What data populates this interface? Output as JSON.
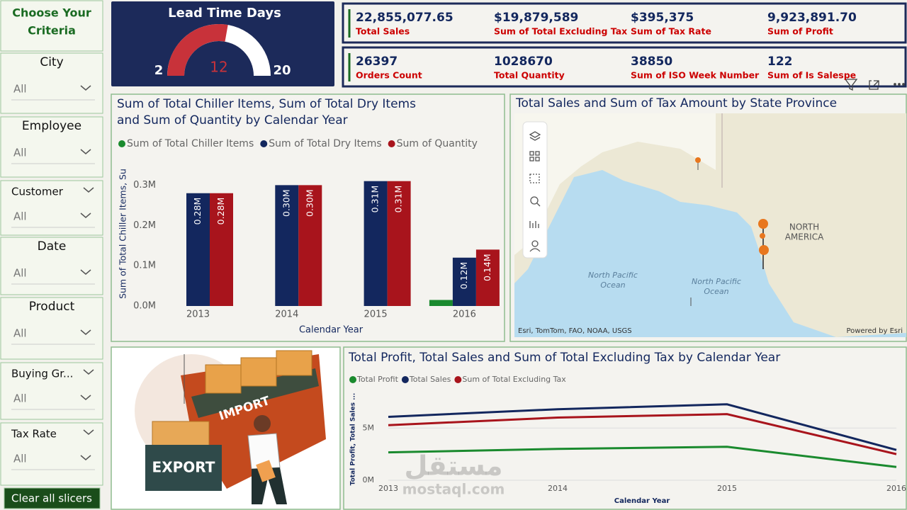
{
  "slicers": {
    "title": "Choose Your Criteria",
    "items": [
      {
        "label": "City",
        "value": "All"
      },
      {
        "label": "Employee",
        "value": "All"
      },
      {
        "label": "Customer",
        "value": "All"
      },
      {
        "label": "Date",
        "value": "All"
      },
      {
        "label": "Product",
        "value": "All"
      },
      {
        "label": "Buying Gr...",
        "value": "All"
      },
      {
        "label": "Tax Rate",
        "value": "All"
      }
    ],
    "clear": "Clear all slicers"
  },
  "gauge": {
    "title": "Lead Time Days",
    "min": 2,
    "max": 20,
    "value": 12
  },
  "kpis": [
    {
      "value": "22,855,077.65",
      "label": "Total Sales"
    },
    {
      "value": "$19,879,589",
      "label": "Sum of Total Excluding Tax"
    },
    {
      "value": "$395,375",
      "label": "Sum of Tax Rate"
    },
    {
      "value": "9,923,891.70",
      "label": "Sum of Profit"
    },
    {
      "value": "26397",
      "label": "Orders Count"
    },
    {
      "value": "1028670",
      "label": "Total Quantity"
    },
    {
      "value": "38850",
      "label": "Sum of ISO Week Number"
    },
    {
      "value": "122",
      "label": "Sum of Is Salespe"
    }
  ],
  "map": {
    "title": "Total Sales and Sum of Tax Amount by State Province",
    "labels": [
      "NORTH",
      "AMERICA",
      "North Pacific",
      "Ocean",
      "North Pacific",
      "Ocean"
    ],
    "attribution": "Esri, TomTom, FAO, NOAA, USGS",
    "powered": "Powered by Esri"
  },
  "image": {
    "texts": [
      "IMPORT",
      "EXPORT"
    ]
  },
  "watermark": [
    "مستقل",
    "mostaql.com"
  ],
  "chart_data": [
    {
      "type": "bar",
      "title": "Sum of Total Chiller Items, Sum of Total Dry Items and Sum of Quantity by Calendar Year",
      "x_label": "Calendar Year",
      "y_label": "Sum of Total Chiller Items, Su",
      "categories": [
        "2013",
        "2014",
        "2015",
        "2016"
      ],
      "series": [
        {
          "name": "Sum of Total Chiller Items",
          "color": "#1a8a2e",
          "values": [
            0,
            0,
            0,
            0.015
          ]
        },
        {
          "name": "Sum of Total Dry Items",
          "color": "#13275e",
          "values": [
            0.28,
            0.3,
            0.31,
            0.12
          ],
          "value_labels": [
            "0.28M",
            "0.30M",
            "0.31M",
            "0.12M"
          ]
        },
        {
          "name": "Sum of Quantity",
          "color": "#a8141c",
          "values": [
            0.28,
            0.3,
            0.31,
            0.14
          ],
          "value_labels": [
            "0.28M",
            "0.30M",
            "0.31M",
            "0.14M"
          ]
        }
      ],
      "ylim": [
        0,
        0.32
      ],
      "yticks": [
        {
          "value": 0,
          "label": "0.0M"
        },
        {
          "value": 0.1,
          "label": "0.1M"
        },
        {
          "value": 0.2,
          "label": "0.2M"
        },
        {
          "value": 0.3,
          "label": "0.3M"
        }
      ]
    },
    {
      "type": "line",
      "title": "Total Profit, Total Sales and Sum of Total Excluding Tax by Calendar Year",
      "x_label": "Calendar Year",
      "y_label": "Total Profit, Total Sales ...",
      "categories": [
        "2013",
        "2014",
        "2015",
        "2016"
      ],
      "series": [
        {
          "name": "Total Profit",
          "color": "#1a8a2e",
          "values": [
            2.67,
            3.0,
            3.2,
            1.27
          ]
        },
        {
          "name": "Total Sales",
          "color": "#13275e",
          "values": [
            6.07,
            6.8,
            7.27,
            2.9
          ]
        },
        {
          "name": "Sum of Total Excluding Tax",
          "color": "#a8141c",
          "values": [
            5.27,
            6.0,
            6.33,
            2.5
          ]
        }
      ],
      "ylim": [
        0,
        8
      ],
      "yticks": [
        {
          "value": 0,
          "label": "0M"
        },
        {
          "value": 5,
          "label": "5M"
        }
      ]
    }
  ]
}
